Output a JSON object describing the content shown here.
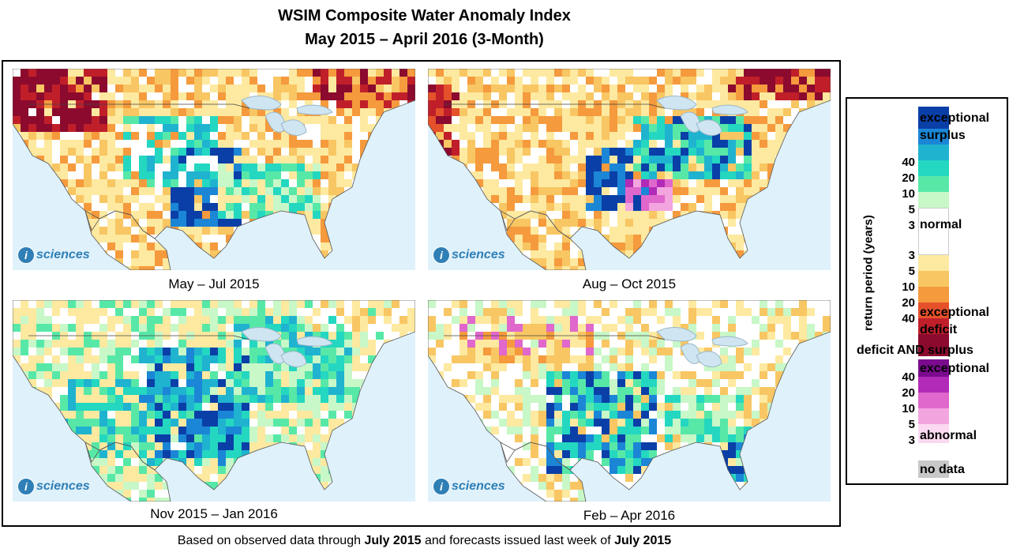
{
  "title": {
    "line1": "WSIM Composite Water Anomaly Index",
    "line2": "May 2015 – April 2016 (3-Month)"
  },
  "panels": [
    {
      "caption": "May – Jul 2015",
      "badge": "sciences"
    },
    {
      "caption": "Aug – Oct 2015",
      "badge": "sciences"
    },
    {
      "caption": "Nov 2015 – Jan 2016",
      "badge": "sciences"
    },
    {
      "caption": "Feb – Apr 2016",
      "badge": "sciences"
    }
  ],
  "badge_letter": "i",
  "footer": {
    "prefix": "Based on observed data through ",
    "bold1": "July 2015",
    "middle": " and forecasts issued last week of ",
    "bold2": "July 2015"
  },
  "legend": {
    "axis_title": "return period (years)",
    "surplus_label": "exceptional surplus",
    "surplus_label_line1": "exceptional",
    "surplus_label_line2": "surplus",
    "normal_label": "normal",
    "deficit_label_line1": "exceptional",
    "deficit_label_line2": "deficit",
    "both_title": "deficit AND surplus",
    "both_top_label": "exceptional",
    "both_bottom_label": "abnormal",
    "nodata_label": "no data",
    "surplus_ticks": [
      "40",
      "20",
      "10",
      "5",
      "3"
    ],
    "deficit_ticks": [
      "3",
      "5",
      "10",
      "20",
      "40"
    ],
    "both_ticks": [
      "40",
      "20",
      "10",
      "5",
      "3"
    ],
    "colors": {
      "surplus": [
        "#0a3fa8",
        "#1b86d6",
        "#1fb3d0",
        "#24d7c0",
        "#57e8a8",
        "#c8f7c8"
      ],
      "normal": "#ffffff",
      "deficit": [
        "#fde9a0",
        "#f8c663",
        "#f59a3d",
        "#e4512b",
        "#c01f2a",
        "#8b0a2e"
      ],
      "both": [
        "#7b0a8e",
        "#b22ab8",
        "#e067cc",
        "#f3a5e0",
        "#fbd9f1"
      ],
      "nodata": "#c8c8c8",
      "water": "#dff1fb"
    }
  }
}
